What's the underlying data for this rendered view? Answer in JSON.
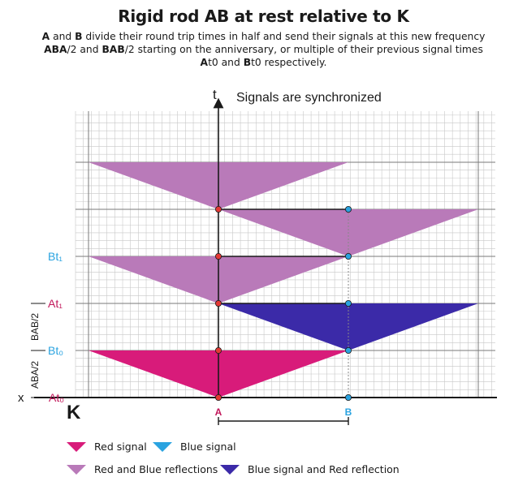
{
  "title": "Rigid rod AB at rest relative to K",
  "description": {
    "line1": [
      "A",
      " and ",
      "B",
      " divide their round trip times in half and send their signals at this new frequency"
    ],
    "line2": [
      "ABA",
      "/2 and ",
      "BAB",
      "/2 starting on the anniversary, or multiple of their previous signal times"
    ],
    "line3": [
      "A",
      "t0 and ",
      "B",
      "t0 respectively."
    ]
  },
  "axes": {
    "t_label": "t",
    "x_label": "x",
    "frame_label": "K",
    "caption": "Signals are synchronized"
  },
  "time_labels": {
    "At0": "At₀",
    "Bt0": "Bt₀",
    "At1": "At₁",
    "Bt1": "Bt₁"
  },
  "interval_labels": {
    "aba": "ABA/2",
    "bab": "BAB/2"
  },
  "points": {
    "A": "A",
    "B": "B"
  },
  "legend": {
    "red_signal": "Red signal",
    "blue_signal": "Blue signal",
    "reflections": "Red and Blue reflections",
    "blue_red": "Blue signal and Red reflection"
  },
  "colors": {
    "red_signal": "#d81b7a",
    "blue_signal": "#2aa3e0",
    "reflection": "#b97ab9",
    "blue_red": "#3b2aa8",
    "a_label": "#c2185b",
    "b_label": "#2aa3e0",
    "grid": "#c8c8c8",
    "grid_major": "#7a7a7a"
  }
}
